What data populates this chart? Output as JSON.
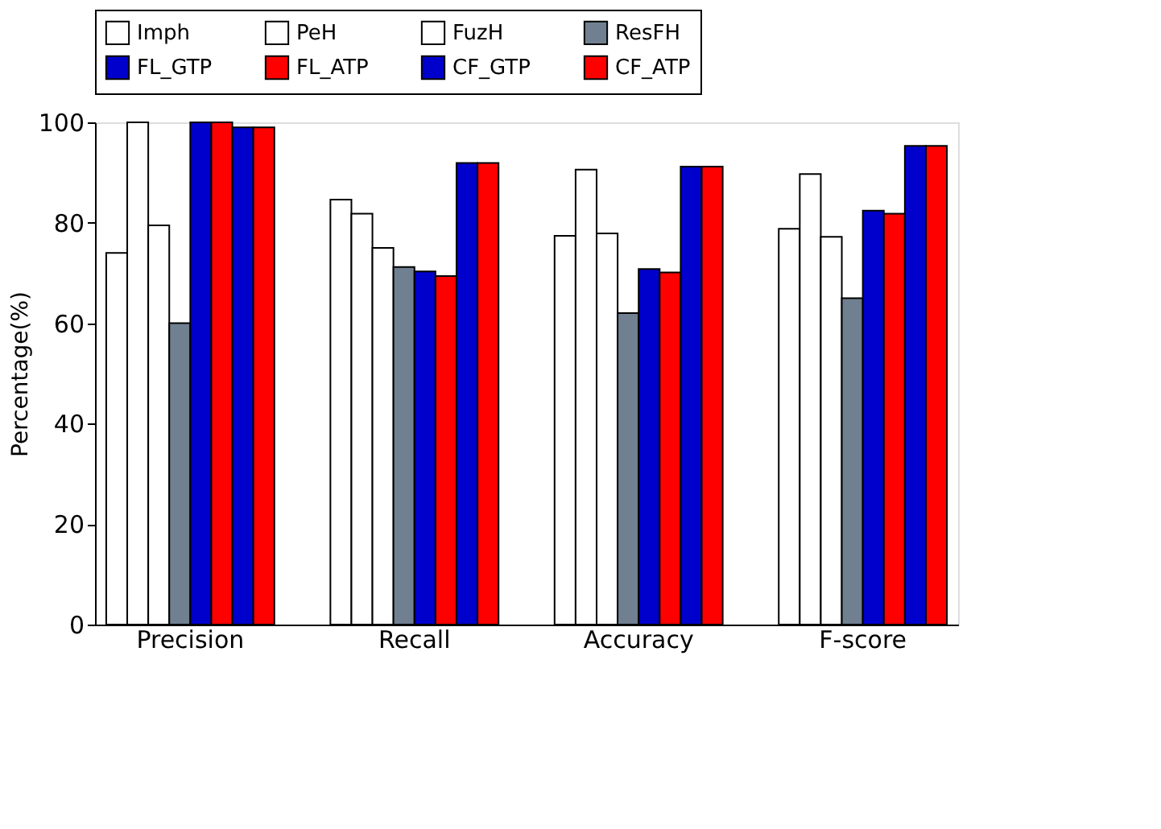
{
  "chart_data": {
    "type": "bar",
    "ylabel": "Percentage(%)",
    "categories": [
      "Precision",
      "Recall",
      "Accuracy",
      "F-score"
    ],
    "series": [
      {
        "name": "Imph",
        "color": "#ffffff",
        "values": [
          74,
          84.6,
          77.4,
          78.8
        ]
      },
      {
        "name": "PeH",
        "color": "#ffffff",
        "values": [
          100,
          81.8,
          90.6,
          89.7
        ]
      },
      {
        "name": "FuzH",
        "color": "#ffffff",
        "values": [
          79.5,
          75,
          77.9,
          77.2
        ]
      },
      {
        "name": "ResFH",
        "color": "#708090",
        "values": [
          60,
          71.2,
          62,
          65
        ]
      },
      {
        "name": "FL_GTP",
        "color": "#0000cc",
        "values": [
          100,
          70.3,
          70.8,
          82.4
        ]
      },
      {
        "name": "FL_ATP",
        "color": "#ff0000",
        "values": [
          100,
          69.4,
          70.1,
          81.8
        ]
      },
      {
        "name": "CF_GTP",
        "color": "#0000cc",
        "values": [
          99,
          91.9,
          91.2,
          95.3
        ]
      },
      {
        "name": "CF_ATP",
        "color": "#ff0000",
        "values": [
          99,
          91.9,
          91.2,
          95.3
        ]
      }
    ],
    "ylim": [
      0,
      100
    ],
    "yticks": [
      0,
      20,
      40,
      60,
      80,
      100
    ],
    "grid": false,
    "legend": "top"
  }
}
